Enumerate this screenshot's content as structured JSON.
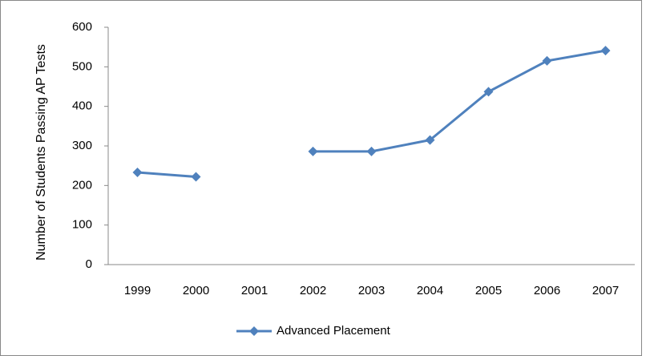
{
  "chart_data": {
    "type": "line",
    "y_label": "Number of Students Passing AP Tests",
    "categories": [
      "1999",
      "2000",
      "2001",
      "2002",
      "2003",
      "2004",
      "2005",
      "2006",
      "2007"
    ],
    "series": [
      {
        "name": "Advanced Placement",
        "color": "#4f81bd",
        "values": [
          233,
          222,
          null,
          286,
          286,
          315,
          437,
          515,
          541
        ]
      }
    ],
    "ylim": [
      0,
      600
    ],
    "yticks": [
      0,
      100,
      200,
      300,
      400,
      500,
      600
    ],
    "grid": false,
    "legend": "bottom"
  }
}
